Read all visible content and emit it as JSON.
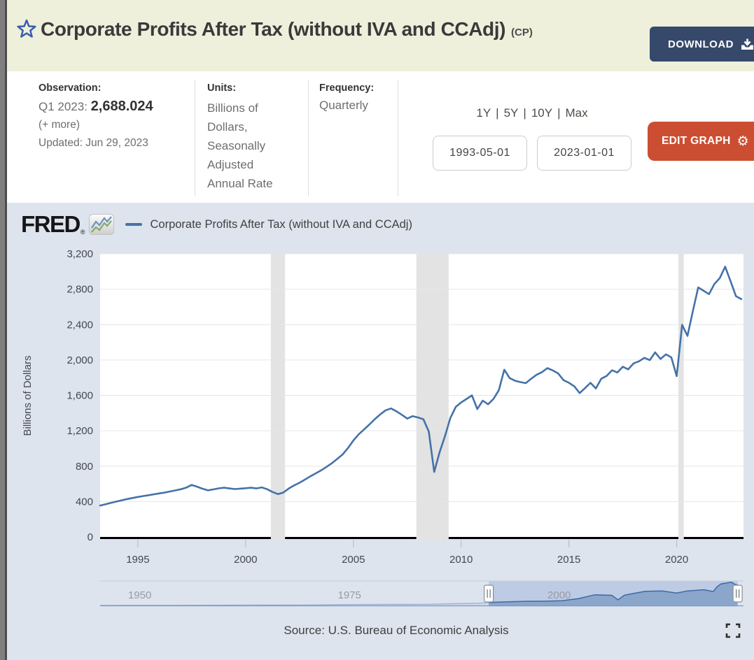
{
  "header": {
    "title": "Corporate Profits After Tax (without IVA and CCAdj)",
    "series_id": "(CP)",
    "download_button": "DOWNLOAD"
  },
  "info_bar": {
    "observation": {
      "label": "Observation:",
      "period": "Q1 2023:",
      "value": "2,688.024",
      "more_link": "(+ more)",
      "updated": "Updated: Jun 29, 2023"
    },
    "units": {
      "label": "Units:",
      "value": "Billions of Dollars, Seasonally Adjusted Annual Rate"
    },
    "frequency": {
      "label": "Frequency:",
      "value": "Quarterly"
    },
    "range": {
      "links": [
        "1Y",
        "5Y",
        "10Y",
        "Max"
      ],
      "separator": "|",
      "start_date": "1993-05-01",
      "end_date": "2023-01-01"
    },
    "edit_graph_button": "EDIT GRAPH"
  },
  "chart": {
    "brand": "FRED",
    "brand_registered": "®",
    "legend_label": "Corporate Profits After Tax (without IVA and CCAdj)",
    "source": "Source: U.S. Bureau of Economic Analysis"
  },
  "icons": {
    "favorite": "star-outline-icon",
    "download": "download-tray-icon",
    "edit": "gear-icon",
    "brand": "line-chart-icon",
    "fullscreen": "fullscreen-corners-icon"
  },
  "colors": {
    "header_bg": "#eef0dc",
    "download_bg": "#36496b",
    "edit_graph_bg": "#cb4e32",
    "chart_bg": "#dde4ee",
    "plot_bg": "#ffffff",
    "line": "#4572a7",
    "gridline": "#e6e6e6",
    "recession_band": "#e3e3e3",
    "minimap_selection": "#bdcbe4"
  },
  "chart_data": {
    "type": "line",
    "title": "Corporate Profits After Tax (without IVA and CCAdj)",
    "ylabel": "Billions of Dollars",
    "units": "Billions of Dollars",
    "frequency": "Quarterly",
    "xlim": [
      1993.25,
      2023.1
    ],
    "ylim": [
      0,
      3200
    ],
    "yticks": [
      0,
      400,
      800,
      1200,
      1600,
      2000,
      2400,
      2800,
      3200
    ],
    "ytick_labels": [
      "0",
      "400",
      "800",
      "1,200",
      "1,600",
      "2,000",
      "2,400",
      "2,800",
      "3,200"
    ],
    "xticks": [
      1995,
      2000,
      2005,
      2010,
      2015,
      2020
    ],
    "grid": "horizontal",
    "line_color": "#4572a7",
    "recession_bands": [
      [
        2001.17,
        2001.83
      ],
      [
        2007.92,
        2009.42
      ],
      [
        2020.08,
        2020.33
      ]
    ],
    "series": [
      {
        "name": "Corporate Profits After Tax (without IVA and CCAdj)",
        "x_start": 1993.25,
        "x_step": 0.25,
        "values": [
          355,
          370,
          385,
          400,
          414,
          428,
          440,
          452,
          462,
          472,
          482,
          492,
          502,
          514,
          526,
          540,
          558,
          588,
          568,
          545,
          527,
          537,
          549,
          556,
          548,
          541,
          546,
          551,
          556,
          548,
          560,
          540,
          508,
          484,
          502,
          547,
          582,
          612,
          648,
          685,
          718,
          752,
          792,
          833,
          882,
          932,
          1005,
          1090,
          1160,
          1215,
          1272,
          1332,
          1385,
          1432,
          1452,
          1420,
          1380,
          1338,
          1365,
          1350,
          1330,
          1190,
          735,
          957,
          1139,
          1345,
          1470,
          1520,
          1560,
          1600,
          1445,
          1540,
          1500,
          1560,
          1660,
          1890,
          1795,
          1765,
          1750,
          1738,
          1788,
          1832,
          1862,
          1908,
          1882,
          1848,
          1772,
          1742,
          1702,
          1626,
          1682,
          1742,
          1678,
          1788,
          1820,
          1884,
          1858,
          1924,
          1894,
          1962,
          1985,
          2024,
          1998,
          2086,
          2012,
          2064,
          2030,
          1817,
          2397,
          2272,
          2550,
          2820,
          2782,
          2744,
          2858,
          2925,
          3055,
          2890,
          2721,
          2688
        ]
      }
    ],
    "minimap": {
      "xlim": [
        1947,
        2023.7
      ],
      "xticks": [
        1950,
        1975,
        2000
      ],
      "selection": [
        1993.33,
        2023.0
      ],
      "x": [
        1947,
        1950,
        1953,
        1956,
        1959,
        1962,
        1965,
        1968,
        1971,
        1974,
        1977,
        1980,
        1983,
        1986,
        1989,
        1992,
        1994,
        1996,
        1998,
        2000,
        2002,
        2004,
        2006,
        2008,
        2008.75,
        2009.5,
        2010.5,
        2012,
        2014,
        2015.75,
        2017,
        2019,
        2020.1,
        2020.5,
        2021,
        2022.25,
        2022.75,
        2023.1
      ],
      "y": [
        20,
        25,
        27,
        30,
        35,
        45,
        60,
        55,
        65,
        95,
        130,
        140,
        150,
        160,
        230,
        300,
        420,
        490,
        545,
        555,
        610,
        900,
        1400,
        1330,
        735,
        1345,
        1550,
        1850,
        1900,
        1630,
        1900,
        2060,
        1817,
        2400,
        2820,
        3055,
        2720,
        2690
      ]
    }
  }
}
